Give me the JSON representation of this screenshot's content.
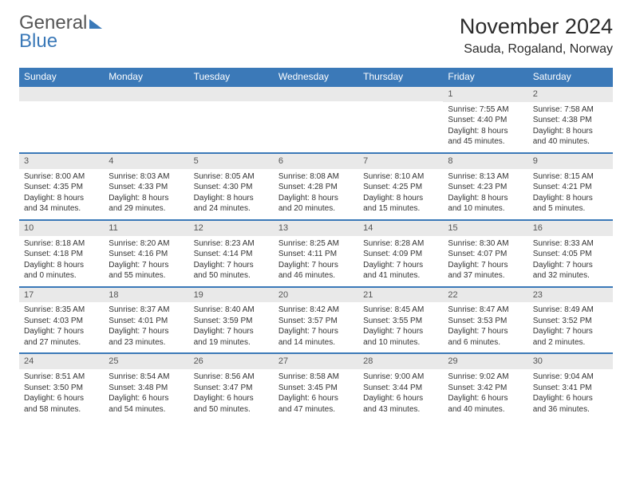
{
  "logo": {
    "part1": "General",
    "part2": "Blue"
  },
  "title": "November 2024",
  "location": "Sauda, Rogaland, Norway",
  "colors": {
    "header_bg": "#3b79b8",
    "header_text": "#ffffff",
    "daynum_bg": "#e9e9e9",
    "row_divider": "#3b79b8",
    "body_text": "#333333"
  },
  "fonts": {
    "title_size_pt": 20,
    "location_size_pt": 12,
    "header_size_pt": 9,
    "cell_size_pt": 7.5
  },
  "headers": [
    "Sunday",
    "Monday",
    "Tuesday",
    "Wednesday",
    "Thursday",
    "Friday",
    "Saturday"
  ],
  "weeks": [
    [
      null,
      null,
      null,
      null,
      null,
      {
        "day": "1",
        "sunrise": "Sunrise: 7:55 AM",
        "sunset": "Sunset: 4:40 PM",
        "daylight1": "Daylight: 8 hours",
        "daylight2": "and 45 minutes."
      },
      {
        "day": "2",
        "sunrise": "Sunrise: 7:58 AM",
        "sunset": "Sunset: 4:38 PM",
        "daylight1": "Daylight: 8 hours",
        "daylight2": "and 40 minutes."
      }
    ],
    [
      {
        "day": "3",
        "sunrise": "Sunrise: 8:00 AM",
        "sunset": "Sunset: 4:35 PM",
        "daylight1": "Daylight: 8 hours",
        "daylight2": "and 34 minutes."
      },
      {
        "day": "4",
        "sunrise": "Sunrise: 8:03 AM",
        "sunset": "Sunset: 4:33 PM",
        "daylight1": "Daylight: 8 hours",
        "daylight2": "and 29 minutes."
      },
      {
        "day": "5",
        "sunrise": "Sunrise: 8:05 AM",
        "sunset": "Sunset: 4:30 PM",
        "daylight1": "Daylight: 8 hours",
        "daylight2": "and 24 minutes."
      },
      {
        "day": "6",
        "sunrise": "Sunrise: 8:08 AM",
        "sunset": "Sunset: 4:28 PM",
        "daylight1": "Daylight: 8 hours",
        "daylight2": "and 20 minutes."
      },
      {
        "day": "7",
        "sunrise": "Sunrise: 8:10 AM",
        "sunset": "Sunset: 4:25 PM",
        "daylight1": "Daylight: 8 hours",
        "daylight2": "and 15 minutes."
      },
      {
        "day": "8",
        "sunrise": "Sunrise: 8:13 AM",
        "sunset": "Sunset: 4:23 PM",
        "daylight1": "Daylight: 8 hours",
        "daylight2": "and 10 minutes."
      },
      {
        "day": "9",
        "sunrise": "Sunrise: 8:15 AM",
        "sunset": "Sunset: 4:21 PM",
        "daylight1": "Daylight: 8 hours",
        "daylight2": "and 5 minutes."
      }
    ],
    [
      {
        "day": "10",
        "sunrise": "Sunrise: 8:18 AM",
        "sunset": "Sunset: 4:18 PM",
        "daylight1": "Daylight: 8 hours",
        "daylight2": "and 0 minutes."
      },
      {
        "day": "11",
        "sunrise": "Sunrise: 8:20 AM",
        "sunset": "Sunset: 4:16 PM",
        "daylight1": "Daylight: 7 hours",
        "daylight2": "and 55 minutes."
      },
      {
        "day": "12",
        "sunrise": "Sunrise: 8:23 AM",
        "sunset": "Sunset: 4:14 PM",
        "daylight1": "Daylight: 7 hours",
        "daylight2": "and 50 minutes."
      },
      {
        "day": "13",
        "sunrise": "Sunrise: 8:25 AM",
        "sunset": "Sunset: 4:11 PM",
        "daylight1": "Daylight: 7 hours",
        "daylight2": "and 46 minutes."
      },
      {
        "day": "14",
        "sunrise": "Sunrise: 8:28 AM",
        "sunset": "Sunset: 4:09 PM",
        "daylight1": "Daylight: 7 hours",
        "daylight2": "and 41 minutes."
      },
      {
        "day": "15",
        "sunrise": "Sunrise: 8:30 AM",
        "sunset": "Sunset: 4:07 PM",
        "daylight1": "Daylight: 7 hours",
        "daylight2": "and 37 minutes."
      },
      {
        "day": "16",
        "sunrise": "Sunrise: 8:33 AM",
        "sunset": "Sunset: 4:05 PM",
        "daylight1": "Daylight: 7 hours",
        "daylight2": "and 32 minutes."
      }
    ],
    [
      {
        "day": "17",
        "sunrise": "Sunrise: 8:35 AM",
        "sunset": "Sunset: 4:03 PM",
        "daylight1": "Daylight: 7 hours",
        "daylight2": "and 27 minutes."
      },
      {
        "day": "18",
        "sunrise": "Sunrise: 8:37 AM",
        "sunset": "Sunset: 4:01 PM",
        "daylight1": "Daylight: 7 hours",
        "daylight2": "and 23 minutes."
      },
      {
        "day": "19",
        "sunrise": "Sunrise: 8:40 AM",
        "sunset": "Sunset: 3:59 PM",
        "daylight1": "Daylight: 7 hours",
        "daylight2": "and 19 minutes."
      },
      {
        "day": "20",
        "sunrise": "Sunrise: 8:42 AM",
        "sunset": "Sunset: 3:57 PM",
        "daylight1": "Daylight: 7 hours",
        "daylight2": "and 14 minutes."
      },
      {
        "day": "21",
        "sunrise": "Sunrise: 8:45 AM",
        "sunset": "Sunset: 3:55 PM",
        "daylight1": "Daylight: 7 hours",
        "daylight2": "and 10 minutes."
      },
      {
        "day": "22",
        "sunrise": "Sunrise: 8:47 AM",
        "sunset": "Sunset: 3:53 PM",
        "daylight1": "Daylight: 7 hours",
        "daylight2": "and 6 minutes."
      },
      {
        "day": "23",
        "sunrise": "Sunrise: 8:49 AM",
        "sunset": "Sunset: 3:52 PM",
        "daylight1": "Daylight: 7 hours",
        "daylight2": "and 2 minutes."
      }
    ],
    [
      {
        "day": "24",
        "sunrise": "Sunrise: 8:51 AM",
        "sunset": "Sunset: 3:50 PM",
        "daylight1": "Daylight: 6 hours",
        "daylight2": "and 58 minutes."
      },
      {
        "day": "25",
        "sunrise": "Sunrise: 8:54 AM",
        "sunset": "Sunset: 3:48 PM",
        "daylight1": "Daylight: 6 hours",
        "daylight2": "and 54 minutes."
      },
      {
        "day": "26",
        "sunrise": "Sunrise: 8:56 AM",
        "sunset": "Sunset: 3:47 PM",
        "daylight1": "Daylight: 6 hours",
        "daylight2": "and 50 minutes."
      },
      {
        "day": "27",
        "sunrise": "Sunrise: 8:58 AM",
        "sunset": "Sunset: 3:45 PM",
        "daylight1": "Daylight: 6 hours",
        "daylight2": "and 47 minutes."
      },
      {
        "day": "28",
        "sunrise": "Sunrise: 9:00 AM",
        "sunset": "Sunset: 3:44 PM",
        "daylight1": "Daylight: 6 hours",
        "daylight2": "and 43 minutes."
      },
      {
        "day": "29",
        "sunrise": "Sunrise: 9:02 AM",
        "sunset": "Sunset: 3:42 PM",
        "daylight1": "Daylight: 6 hours",
        "daylight2": "and 40 minutes."
      },
      {
        "day": "30",
        "sunrise": "Sunrise: 9:04 AM",
        "sunset": "Sunset: 3:41 PM",
        "daylight1": "Daylight: 6 hours",
        "daylight2": "and 36 minutes."
      }
    ]
  ]
}
